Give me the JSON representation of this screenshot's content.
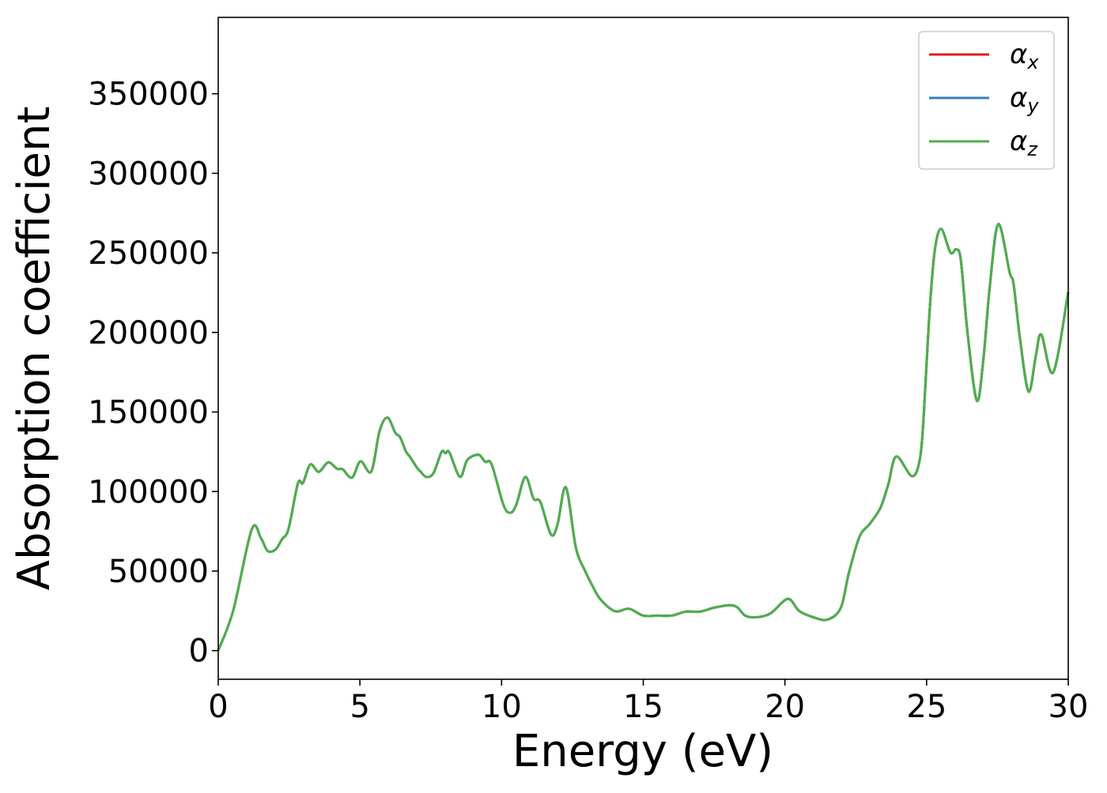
{
  "chart_data": {
    "type": "line",
    "xlabel": "Energy (eV)",
    "ylabel": "Absorption coefficient",
    "xlim": [
      0,
      30
    ],
    "ylim": [
      -18000,
      398000
    ],
    "xticks": [
      0,
      5,
      10,
      15,
      20,
      25,
      30
    ],
    "yticks": [
      0,
      50000,
      100000,
      150000,
      200000,
      250000,
      300000,
      350000
    ],
    "grid": false,
    "legend_placement": "top-right",
    "series": [
      {
        "name": "α_x",
        "label_base": "α",
        "label_sub": "x",
        "color": "#e41a1c"
      },
      {
        "name": "α_y",
        "label_base": "α",
        "label_sub": "y",
        "color": "#377eb8"
      },
      {
        "name": "α_z",
        "label_base": "α",
        "label_sub": "z",
        "color": "#4daf4a"
      }
    ],
    "x": [
      0,
      0.53,
      1.18,
      1.51,
      1.74,
      2.02,
      2.25,
      2.48,
      2.81,
      2.99,
      3.25,
      3.54,
      3.83,
      3.97,
      4.2,
      4.39,
      4.72,
      5.02,
      5.4,
      5.69,
      5.97,
      6.25,
      6.42,
      6.62,
      6.76,
      7.0,
      7.14,
      7.35,
      7.6,
      7.88,
      8.02,
      8.16,
      8.53,
      8.79,
      9.18,
      9.42,
      9.65,
      10.07,
      10.32,
      10.53,
      10.84,
      11.13,
      11.37,
      11.74,
      11.97,
      12.27,
      12.62,
      12.95,
      13.23,
      13.5,
      14.0,
      14.5,
      15.0,
      15.5,
      16.0,
      16.5,
      17.0,
      17.5,
      18.0,
      18.3,
      18.6,
      19.0,
      19.5,
      20.1,
      20.5,
      21.0,
      21.5,
      21.97,
      22.25,
      22.63,
      23.0,
      23.37,
      23.65,
      23.93,
      24.49,
      24.77,
      24.91,
      25.09,
      25.28,
      25.51,
      25.84,
      26.05,
      26.21,
      26.44,
      26.77,
      27.0,
      27.23,
      27.53,
      27.93,
      28.07,
      28.3,
      28.6,
      28.86,
      29.05,
      29.47,
      30.0
    ],
    "y": [
      0,
      25300,
      76100,
      70600,
      62700,
      63500,
      70000,
      76500,
      105000,
      105400,
      117000,
      112400,
      117800,
      117800,
      114200,
      114000,
      108700,
      119000,
      112500,
      137700,
      146500,
      136900,
      134100,
      125300,
      122000,
      115300,
      112500,
      109100,
      111700,
      124800,
      124100,
      124500,
      109200,
      119800,
      123100,
      118700,
      117000,
      91400,
      86700,
      92300,
      109200,
      95500,
      93400,
      73100,
      78900,
      102600,
      64900,
      50000,
      40000,
      32000,
      24800,
      26300,
      22000,
      22000,
      22000,
      24500,
      24500,
      27000,
      28500,
      27500,
      22000,
      21000,
      23500,
      32500,
      25000,
      21000,
      19500,
      26800,
      48300,
      71500,
      79800,
      89700,
      104600,
      122000,
      109600,
      121100,
      151000,
      208900,
      250200,
      265100,
      250200,
      252200,
      245300,
      200600,
      157200,
      182300,
      228700,
      268100,
      237800,
      230400,
      195600,
      162800,
      185700,
      198600,
      174900,
      225400
    ]
  }
}
